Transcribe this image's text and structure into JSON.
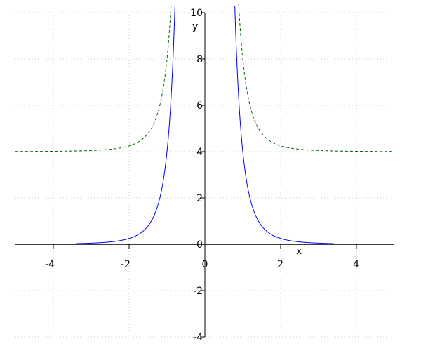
{
  "chart_data": {
    "type": "line",
    "title": "",
    "xlabel": "x",
    "ylabel": "y",
    "xlim": [
      -5,
      5
    ],
    "ylim": [
      -4,
      10
    ],
    "grid": true,
    "x_ticks": [
      -4,
      -2,
      0,
      2,
      4
    ],
    "y_ticks": [
      -4,
      -2,
      0,
      2,
      4,
      6,
      8,
      10
    ],
    "series": [
      {
        "expression": "4/x^4",
        "color": "#0000ff",
        "style": "solid",
        "x_range": [
          -3.4,
          3.4
        ]
      },
      {
        "expression": "4 + 4/x^4",
        "color": "#006400",
        "style": "dashed",
        "x_range": [
          -5,
          5
        ]
      }
    ]
  }
}
